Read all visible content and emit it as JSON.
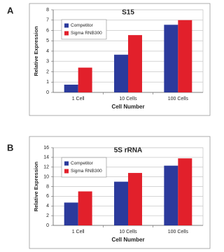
{
  "chart_data": [
    {
      "type": "bar",
      "panel_label": "A",
      "title": "S15",
      "x_label": "Cell Number",
      "y_label": "Relative Expression",
      "categories": [
        "1 Cell",
        "10 Cells",
        "100 Cells"
      ],
      "series": [
        {
          "name": "Competitor",
          "color": "#2b3a9c",
          "values": [
            0.75,
            3.65,
            6.55
          ]
        },
        {
          "name": "Sigma RNB300",
          "color": "#e2202b",
          "values": [
            2.4,
            5.55,
            7.0
          ]
        }
      ],
      "ylim": [
        0,
        8
      ],
      "yticks": [
        0,
        1,
        2,
        3,
        4,
        5,
        6,
        7,
        8
      ],
      "grid": true,
      "legend": "top-left"
    },
    {
      "type": "bar",
      "panel_label": "B",
      "title": "5S rRNA",
      "x_label": "Cell Number",
      "y_label": "Relative Expression",
      "categories": [
        "1 Cell",
        "10 Cells",
        "100 Cells"
      ],
      "series": [
        {
          "name": "Competitor",
          "color": "#2b3a9c",
          "values": [
            4.7,
            9.0,
            12.3
          ]
        },
        {
          "name": "Sigma RNB300",
          "color": "#e2202b",
          "values": [
            7.0,
            10.8,
            13.8
          ]
        }
      ],
      "ylim": [
        0,
        16
      ],
      "yticks": [
        0,
        2,
        4,
        6,
        8,
        10,
        12,
        14,
        16
      ],
      "grid": true,
      "legend": "top-left"
    }
  ]
}
